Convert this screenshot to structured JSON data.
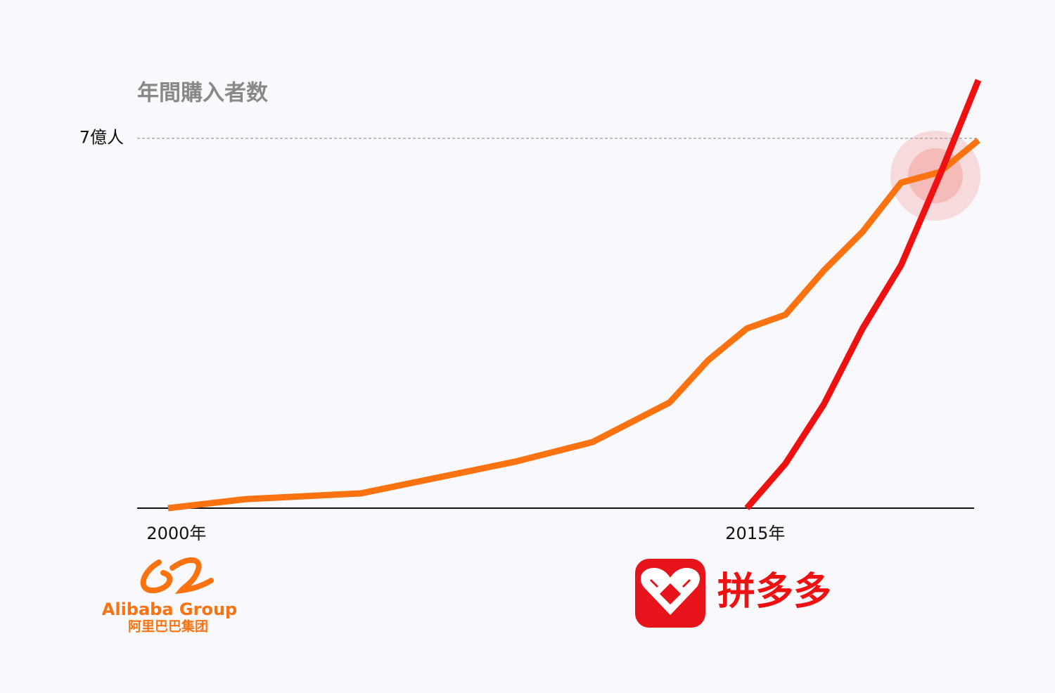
{
  "chart_data": {
    "type": "line",
    "title": "年間購入者数",
    "x": [
      2000,
      2002,
      2005,
      2009,
      2011,
      2013,
      2014,
      2015,
      2016,
      2017,
      2018,
      2019,
      2020,
      2021
    ],
    "series": [
      {
        "name": "Alibaba Group",
        "name_cn": "阿里巴巴集团",
        "color": "#fb7310",
        "values": [
          0,
          0.17,
          0.28,
          0.88,
          1.25,
          2.0,
          2.8,
          3.4,
          3.66,
          4.5,
          5.23,
          6.16,
          6.36,
          6.96
        ]
      },
      {
        "name": "拼多多",
        "color": "#ee1111",
        "values": [
          null,
          null,
          null,
          null,
          null,
          null,
          null,
          0,
          0.84,
          1.97,
          3.4,
          4.6,
          6.3,
          8.1
        ]
      }
    ],
    "xlim": [
      1999.2,
      2021
    ],
    "xticks": [
      {
        "value": 2000,
        "label": "2000年"
      },
      {
        "value": 2015,
        "label": "2015年"
      }
    ],
    "ylim": [
      0,
      8.1
    ],
    "yticks": [
      {
        "value": 7,
        "label": "7億人"
      }
    ],
    "grid": true
  }
}
